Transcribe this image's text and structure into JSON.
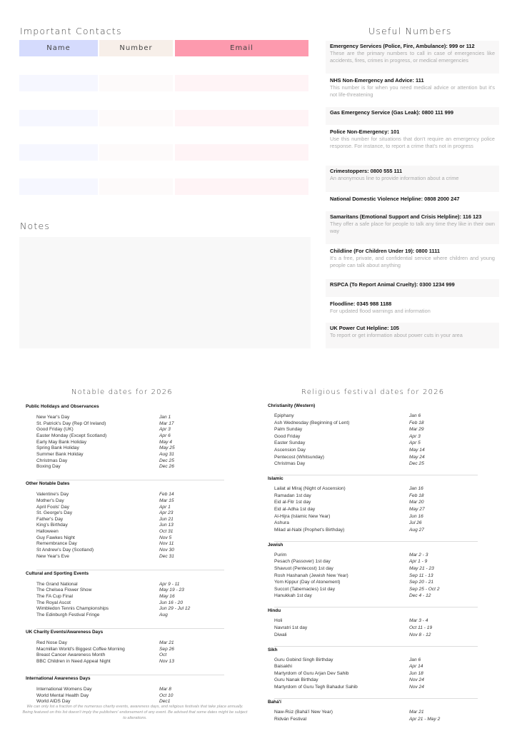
{
  "contacts": {
    "title": "Important Contacts",
    "headers": {
      "name": "Name",
      "number": "Number",
      "email": "Email"
    },
    "colors": {
      "name": "#d5dbfd",
      "number": "#f7efe9",
      "email": "#fd9aae",
      "name_row": "#f6f7ff",
      "number_row": "#fdfafa",
      "email_row": "#fff4f6"
    }
  },
  "notes": {
    "title": "Notes"
  },
  "useful": {
    "title": "Useful Numbers",
    "items": [
      {
        "title": "Emergency Services (Police, Fire, Ambulance): 999 or 112",
        "desc": "These are the primary numbers to call in case of emergencies like accidents, fires, crimes in progress, or medical emergencies"
      },
      {
        "title": "NHS Non-Emergency and Advice: 111",
        "desc": "This number is for when you need medical advice or attention but it's not life-threatening"
      },
      {
        "title": "Gas Emergency Service (Gas Leak): 0800 111 999",
        "desc": ""
      },
      {
        "title": "Police Non-Emergency: 101",
        "desc": "Use this number for situations that don't require an emergency police response. For instance, to report a crime that's not in progress"
      },
      {
        "title": "Crimestoppers: 0800 555 111",
        "desc": "An anonymous line to provide information about a crime"
      },
      {
        "title": "National Domestic Violence Helpline: 0808 2000 247",
        "desc": ""
      },
      {
        "title": "Samaritans (Emotional Support and Crisis Helpline): 116 123",
        "desc": "They offer a safe place for people to talk any time they like in their own way"
      },
      {
        "title": "Childline (For Children Under 19): 0800 1111",
        "desc": "It's a free, private, and confidential service where children and young people can talk about anything"
      },
      {
        "title": "RSPCA (To Report Animal Cruelty): 0300 1234 999",
        "desc": ""
      },
      {
        "title": "Floodline: 0345 988 1188",
        "desc": "For updated flood warnings and information"
      },
      {
        "title": "UK Power Cut Helpline: 105",
        "desc": "To report or get information about power cuts in your area"
      }
    ]
  },
  "notable": {
    "title": "Notable dates for 2026",
    "sections": [
      {
        "name": "Public Holidays and Observances",
        "rows": [
          [
            "New Year's Day",
            "Jan 1"
          ],
          [
            "St. Patrick's Day (Rep Of Ireland)",
            "Mar 17"
          ],
          [
            "Good Friday (UK)",
            "Apr 3"
          ],
          [
            "Easter Monday (Except Scotland)",
            "Apr 6"
          ],
          [
            "Early May Bank Holiday",
            "May 4"
          ],
          [
            "Spring Bank Holiday",
            "May 25"
          ],
          [
            "Summer Bank Holiday",
            "Aug 31"
          ],
          [
            "Christmas Day",
            "Dec 25"
          ],
          [
            "Boxing Day",
            "Dec 26"
          ]
        ]
      },
      {
        "name": "Other Notable Dates",
        "rows": [
          [
            "Valentine's Day",
            "Feb 14"
          ],
          [
            "Mother's Day",
            "Mar 15"
          ],
          [
            "April Fools' Day",
            "Apr 1"
          ],
          [
            "St. George's Day",
            "Apr 23"
          ],
          [
            "Father's Day",
            "Jun 21"
          ],
          [
            "King's Birthday",
            "Jun 13"
          ],
          [
            "Halloween",
            "Oct 31"
          ],
          [
            "Guy Fawkes Night",
            "Nov 5"
          ],
          [
            "Remembrance Day",
            "Nov 11"
          ],
          [
            "St Andrew's Day (Scotland)",
            "Nov 30"
          ],
          [
            "New Year's Eve",
            "Dec 31"
          ]
        ]
      },
      {
        "name": "Cultural and Sporting Events",
        "rows": [
          [
            "The Grand National",
            "Apr 9 - 11"
          ],
          [
            "The Chelsea Flower Show",
            "May 19 - 23"
          ],
          [
            "The FA Cup Final",
            "May 16"
          ],
          [
            "The Royal Ascot",
            "Jun 16 - 20"
          ],
          [
            "Wimbledon Tennis Championships",
            "Jun 29 - Jul 12"
          ],
          [
            "The Edinburgh Festival Fringe",
            "Aug"
          ]
        ]
      },
      {
        "name": "UK Charity Events/Awareness Days",
        "rows": [
          [
            "Red Nose Day",
            "Mar 21"
          ],
          [
            "Macmillan World's Biggest Coffee Morning",
            "Sep 26"
          ],
          [
            "Breast Cancer Awareness Month",
            "Oct"
          ],
          [
            "BBC Children in Need Appeal Night",
            "Nov 13"
          ]
        ]
      },
      {
        "name": "International Awareness Days",
        "rows": [
          [
            "International Womens Day",
            "Mar 8"
          ],
          [
            "World Mental Health Day",
            "Oct 10"
          ],
          [
            "World AIDS Day",
            "Dec1"
          ]
        ]
      }
    ],
    "footnote": "We can only list a fraction of the numerous charity events, awareness days, and religious festivals that take place annually.  Being featured on this list doesn't imply the publishers' endorsement of any event. Be advised that some dates might be subject to alterations."
  },
  "religious": {
    "title": "Religious festival dates for 2026",
    "sections": [
      {
        "name": "Christianity (Western)",
        "rows": [
          [
            "Epiphany",
            "Jan 6"
          ],
          [
            "Ash Wednesday (Beginning of Lent)",
            "Feb 18"
          ],
          [
            "Palm Sunday",
            "Mar 29"
          ],
          [
            "Good Friday",
            "Apr 3"
          ],
          [
            "Easter Sunday",
            "Apr 5"
          ],
          [
            "Ascension Day",
            "May 14"
          ],
          [
            "Pentecost (Whitsunday)",
            "May 24"
          ],
          [
            "Christmas Day",
            "Dec 25"
          ]
        ]
      },
      {
        "name": "Islamic",
        "rows": [
          [
            "Lailat al Miraj (Night of Ascension)",
            "Jan 16"
          ],
          [
            "Ramadan 1st day",
            "Feb 18"
          ],
          [
            "Eid al-Fitr 1st day",
            "Mar 20"
          ],
          [
            "Eid al-Adha 1st day",
            "May 27"
          ],
          [
            "Al-Hijra (Islamic New Year)",
            "Jun 16"
          ],
          [
            "Ashura",
            "Jul 26"
          ],
          [
            "Milad al-Nabi (Prophet's Birthday)",
            "Aug 27"
          ]
        ]
      },
      {
        "name": "Jewish",
        "rows": [
          [
            "Purim",
            "Mar 2 - 3"
          ],
          [
            "Pesach (Passover) 1st day",
            "Apr 1 - 9"
          ],
          [
            "Shavuot (Pentecost) 1st day",
            "May 21 - 23"
          ],
          [
            "Rosh Hashanah (Jewish New Year)",
            "Sep 11 - 13"
          ],
          [
            "Yom Kippur (Day of Atonement)",
            "Sep 20 - 21"
          ],
          [
            "Succot (Tabernacles) 1st day",
            "Sep 25 - Oct 2"
          ],
          [
            "Hanukkah 1st day",
            "Dec 4 - 12"
          ]
        ]
      },
      {
        "name": "Hindu",
        "rows": [
          [
            "Holi",
            "Mar 3 - 4"
          ],
          [
            "Navratri 1st day",
            "Oct 11 - 19"
          ],
          [
            "Diwali",
            "Nov 8 - 12"
          ]
        ]
      },
      {
        "name": "Sikh",
        "rows": [
          [
            "Guru Gobind Singh Birthday",
            "Jan 6"
          ],
          [
            "Baisakhi",
            "Apr 14"
          ],
          [
            "Martyrdom of Guru Arjan Dev Sahib",
            "Jun 18"
          ],
          [
            "Guru Nanak Birthday",
            "Nov 24"
          ],
          [
            "Martyrdom of Guru Tegh Bahadur Sahib",
            "Nov 24"
          ]
        ]
      },
      {
        "name": "Bahá'í",
        "rows": [
          [
            "Naw-Rúz (Bahá'í New Year)",
            "Mar 21"
          ],
          [
            "Ridván Festival",
            "Apr 21 - May 2"
          ]
        ]
      }
    ]
  }
}
